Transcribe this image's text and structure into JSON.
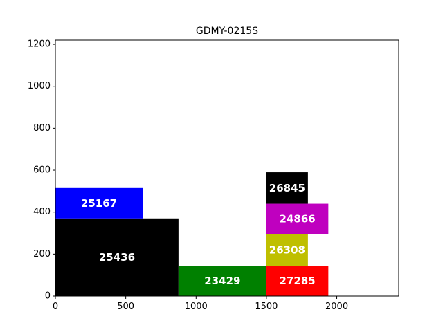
{
  "chart_data": {
    "type": "bar",
    "title": "GDMY-0215S",
    "xlabel": "",
    "ylabel": "",
    "xlim": [
      0,
      2440
    ],
    "ylim": [
      0,
      1220
    ],
    "x_ticks": [
      0,
      500,
      1000,
      1500,
      2000
    ],
    "y_ticks": [
      0,
      200,
      400,
      600,
      800,
      1000,
      1200
    ],
    "grid": false,
    "rects": [
      {
        "label": "25436",
        "x": 0,
        "y": 0,
        "width": 875,
        "height": 370,
        "color": "#000000"
      },
      {
        "label": "25167",
        "x": 0,
        "y": 370,
        "width": 620,
        "height": 145,
        "color": "#0000ff"
      },
      {
        "label": "23429",
        "x": 875,
        "y": 0,
        "width": 625,
        "height": 145,
        "color": "#008000"
      },
      {
        "label": "27285",
        "x": 1500,
        "y": 0,
        "width": 440,
        "height": 145,
        "color": "#ff0000"
      },
      {
        "label": "26308",
        "x": 1500,
        "y": 145,
        "width": 295,
        "height": 150,
        "color": "#bfbf00"
      },
      {
        "label": "24866",
        "x": 1500,
        "y": 295,
        "width": 440,
        "height": 145,
        "color": "#bf00bf"
      },
      {
        "label": "26845",
        "x": 1500,
        "y": 440,
        "width": 295,
        "height": 150,
        "color": "#000000"
      }
    ]
  }
}
